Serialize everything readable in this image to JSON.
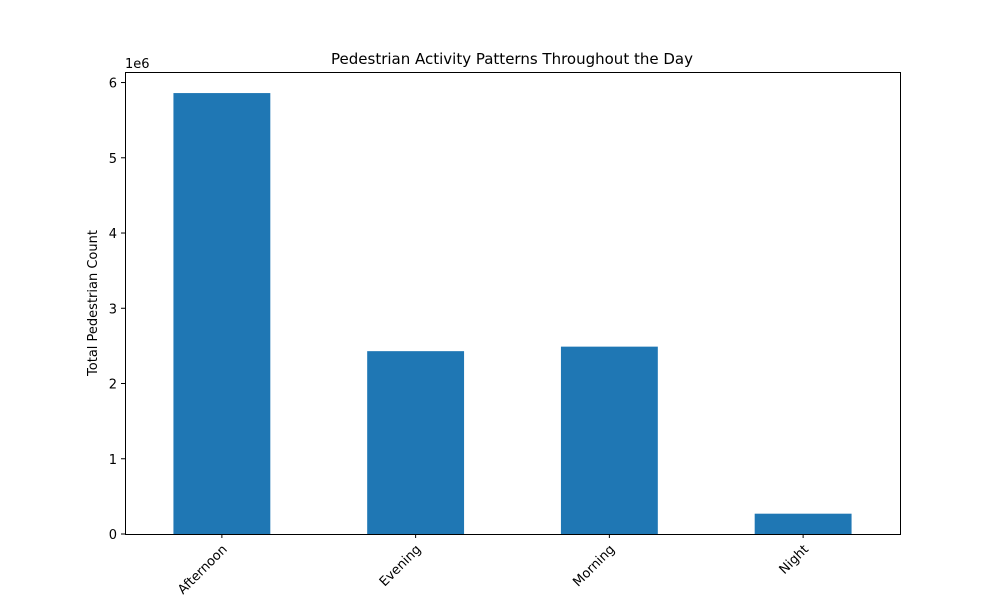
{
  "chart_data": {
    "type": "bar",
    "title": "Pedestrian Activity Patterns Throughout the Day",
    "xlabel": "",
    "ylabel": "Total Pedestrian Count",
    "categories": [
      "Afternoon",
      "Evening",
      "Morning",
      "Night"
    ],
    "values": [
      5860000,
      2430000,
      2490000,
      270000
    ],
    "ylim": [
      0,
      6140000
    ],
    "yticks": [
      0,
      1000000,
      2000000,
      3000000,
      4000000,
      5000000,
      6000000
    ],
    "ytick_labels": [
      "0",
      "1",
      "2",
      "3",
      "4",
      "5",
      "6"
    ],
    "offset_text": "1e6",
    "bar_color": "#1f77b4",
    "grid": false,
    "legend": "none"
  }
}
